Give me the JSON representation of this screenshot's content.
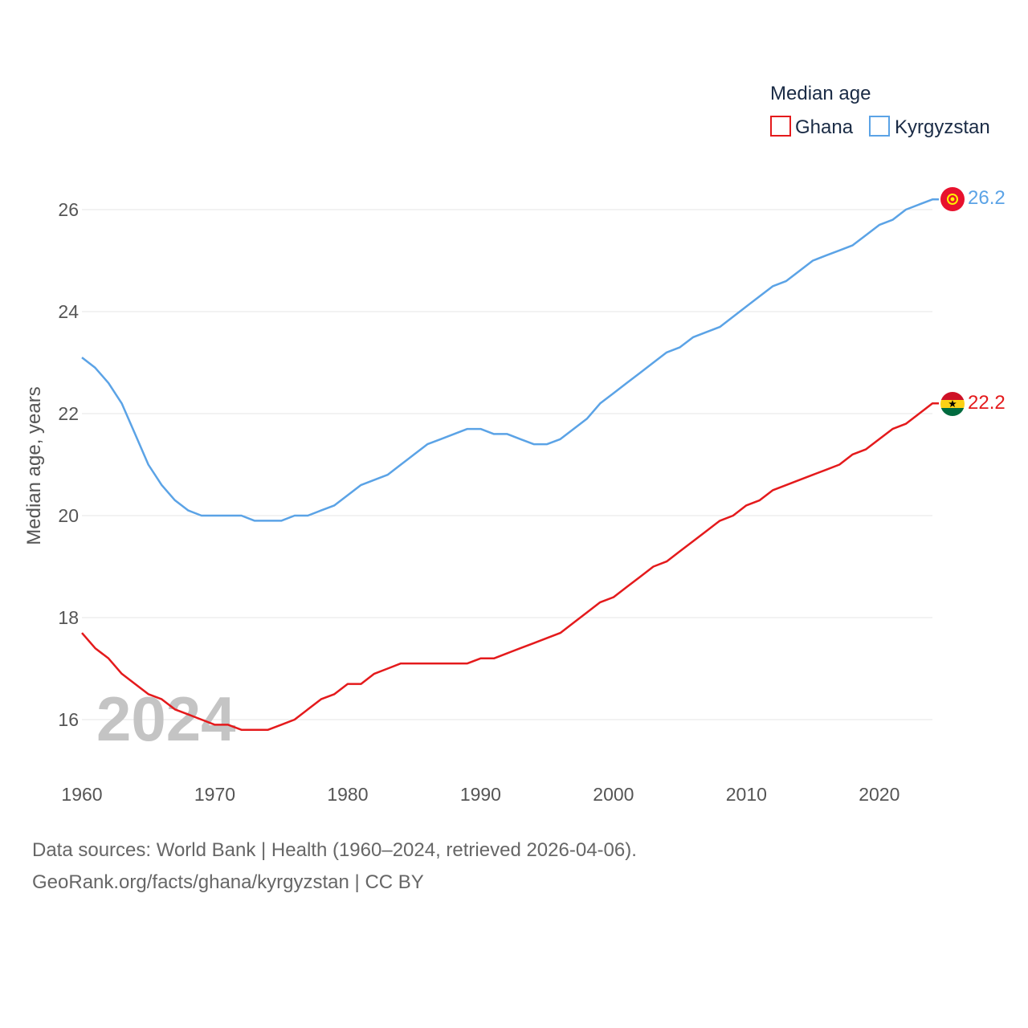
{
  "chart_data": {
    "type": "line",
    "title": "",
    "xlabel": "",
    "ylabel": "Median age, years",
    "legend_title": "Median age",
    "legend_position": "top-right",
    "current_year_label": "2024",
    "xlim": [
      1960,
      2024
    ],
    "ylim": [
      15,
      27
    ],
    "y_ticks": [
      16,
      18,
      20,
      22,
      24,
      26
    ],
    "x_ticks": [
      1960,
      1970,
      1980,
      1990,
      2000,
      2010,
      2020
    ],
    "grid": true,
    "x": [
      1960,
      1961,
      1962,
      1963,
      1964,
      1965,
      1966,
      1967,
      1968,
      1969,
      1970,
      1971,
      1972,
      1973,
      1974,
      1975,
      1976,
      1977,
      1978,
      1979,
      1980,
      1981,
      1982,
      1983,
      1984,
      1985,
      1986,
      1987,
      1988,
      1989,
      1990,
      1991,
      1992,
      1993,
      1994,
      1995,
      1996,
      1997,
      1998,
      1999,
      2000,
      2001,
      2002,
      2003,
      2004,
      2005,
      2006,
      2007,
      2008,
      2009,
      2010,
      2011,
      2012,
      2013,
      2014,
      2015,
      2016,
      2017,
      2018,
      2019,
      2020,
      2021,
      2022,
      2023,
      2024
    ],
    "series": [
      {
        "name": "Ghana",
        "color": "#e41a1c",
        "end_label": "22.2",
        "flag": "ghana-flag",
        "values": [
          17.7,
          17.4,
          17.2,
          16.9,
          16.7,
          16.5,
          16.4,
          16.2,
          16.1,
          16.0,
          15.9,
          15.9,
          15.8,
          15.8,
          15.8,
          15.9,
          16.0,
          16.2,
          16.4,
          16.5,
          16.7,
          16.7,
          16.9,
          17.0,
          17.1,
          17.1,
          17.1,
          17.1,
          17.1,
          17.1,
          17.2,
          17.2,
          17.3,
          17.4,
          17.5,
          17.6,
          17.7,
          17.9,
          18.1,
          18.3,
          18.4,
          18.6,
          18.8,
          19.0,
          19.1,
          19.3,
          19.5,
          19.7,
          19.9,
          20.0,
          20.2,
          20.3,
          20.5,
          20.6,
          20.7,
          20.8,
          20.9,
          21.0,
          21.2,
          21.3,
          21.5,
          21.7,
          21.8,
          22.0,
          22.2
        ]
      },
      {
        "name": "Kyrgyzstan",
        "color": "#5ba3e6",
        "end_label": "26.2",
        "flag": "kyrgyzstan-flag",
        "values": [
          23.1,
          22.9,
          22.6,
          22.2,
          21.6,
          21.0,
          20.6,
          20.3,
          20.1,
          20.0,
          20.0,
          20.0,
          20.0,
          19.9,
          19.9,
          19.9,
          20.0,
          20.0,
          20.1,
          20.2,
          20.4,
          20.6,
          20.7,
          20.8,
          21.0,
          21.2,
          21.4,
          21.5,
          21.6,
          21.7,
          21.7,
          21.6,
          21.6,
          21.5,
          21.4,
          21.4,
          21.5,
          21.7,
          21.9,
          22.2,
          22.4,
          22.6,
          22.8,
          23.0,
          23.2,
          23.3,
          23.5,
          23.6,
          23.7,
          23.9,
          24.1,
          24.3,
          24.5,
          24.6,
          24.8,
          25.0,
          25.1,
          25.2,
          25.3,
          25.5,
          25.7,
          25.8,
          26.0,
          26.1,
          26.2
        ]
      }
    ]
  },
  "footer": {
    "sources": "Data sources: World Bank | Health (1960–2024, retrieved 2026-04-06).",
    "credit": "GeoRank.org/facts/ghana/kyrgyzstan | CC BY"
  }
}
